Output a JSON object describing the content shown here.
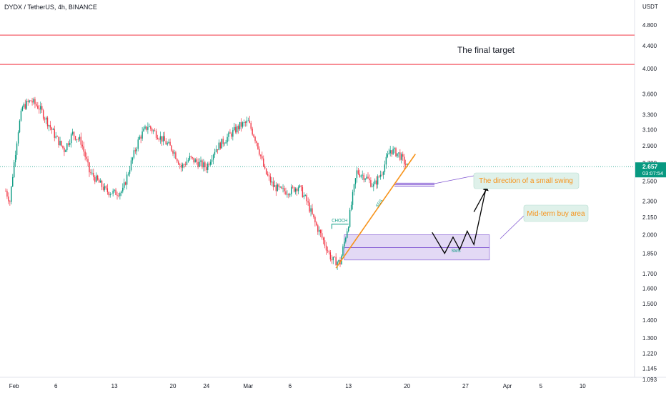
{
  "header": {
    "symbol": "DYDX / TetherUS, 4h, BINANCE",
    "currency": "USDT"
  },
  "price_scale": {
    "ticks": [
      "4.800",
      "4.400",
      "4.000",
      "3.600",
      "3.300",
      "3.100",
      "2.900",
      "2.700",
      "2.500",
      "2.300",
      "2.150",
      "2.000",
      "1.850",
      "1.700",
      "1.600",
      "1.500",
      "1.400",
      "1.300",
      "1.220",
      "1.145",
      "1.093"
    ],
    "current_price": "2.657",
    "countdown": "03:07:54",
    "current_color": "#089981"
  },
  "time_scale": {
    "labels": [
      "Feb",
      "6",
      "13",
      "20",
      "24",
      "Mar",
      "6",
      "13",
      "20",
      "27",
      "Apr",
      "5",
      "10"
    ]
  },
  "annotations": {
    "final_target": "The final target",
    "small_swing": "The direction of a small swing",
    "buy_area": "Mid-term buy area",
    "choch": "CHOCH",
    "sss": "SSS",
    "sms": "SMS"
  },
  "colors": {
    "up": "#089981",
    "down": "#f23645",
    "target_line": "#f23645",
    "trendline": "#f7931a",
    "zone_fill": "#d9ccf2",
    "zone_border": "#7b4fd0",
    "callout_bg": "#dff1ea",
    "callout_text": "#f7931a"
  },
  "chart_data": {
    "type": "candlestick",
    "title": "DYDX / TetherUS, 4h, BINANCE",
    "ylabel": "USDT",
    "y_scale": "log",
    "ylim": [
      1.093,
      4.9
    ],
    "x_range": [
      "Jan 31",
      "Apr 12"
    ],
    "target_lines": [
      4.6,
      4.07
    ],
    "buy_zone": {
      "from": "Mar 13",
      "to": "Mar 29",
      "low": 1.8,
      "high": 2.0,
      "mid": 1.895
    },
    "current_price": 2.657,
    "waypoints": [
      [
        "Jan 31",
        2.4
      ],
      [
        "Jan 31.5",
        2.3
      ],
      [
        "Feb 1",
        2.7
      ],
      [
        "Feb 1.5",
        3.1
      ],
      [
        "Feb 2",
        3.4
      ],
      [
        "Feb 3",
        3.5
      ],
      [
        "Feb 4",
        3.4
      ],
      [
        "Feb 5",
        3.2
      ],
      [
        "Feb 6",
        3.0
      ],
      [
        "Feb 7",
        2.85
      ],
      [
        "Feb 8",
        3.05
      ],
      [
        "Feb 9",
        2.95
      ],
      [
        "Feb 10",
        2.6
      ],
      [
        "Feb 11",
        2.5
      ],
      [
        "Feb 12",
        2.4
      ],
      [
        "Feb 13",
        2.38
      ],
      [
        "Feb 14",
        2.4
      ],
      [
        "Feb 15",
        2.7
      ],
      [
        "Feb 16",
        3.0
      ],
      [
        "Feb 17",
        3.15
      ],
      [
        "Feb 18",
        3.05
      ],
      [
        "Feb 19",
        2.95
      ],
      [
        "Feb 20",
        2.85
      ],
      [
        "Feb 21",
        2.65
      ],
      [
        "Feb 22",
        2.75
      ],
      [
        "Feb 23",
        2.7
      ],
      [
        "Feb 24",
        2.65
      ],
      [
        "Feb 25",
        2.85
      ],
      [
        "Feb 26",
        2.95
      ],
      [
        "Feb 27",
        3.05
      ],
      [
        "Feb 28",
        3.15
      ],
      [
        "Mar 1",
        3.2
      ],
      [
        "Mar 2",
        2.95
      ],
      [
        "Mar 3",
        2.6
      ],
      [
        "Mar 4",
        2.45
      ],
      [
        "Mar 5",
        2.4
      ],
      [
        "Mar 6",
        2.4
      ],
      [
        "Mar 7",
        2.45
      ],
      [
        "Mar 8",
        2.3
      ],
      [
        "Mar 9",
        2.1
      ],
      [
        "Mar 10",
        1.95
      ],
      [
        "Mar 11",
        1.8
      ],
      [
        "Mar 12",
        1.78
      ],
      [
        "Mar 13",
        2.1
      ],
      [
        "Mar 14",
        2.6
      ],
      [
        "Mar 15",
        2.55
      ],
      [
        "Mar 16",
        2.45
      ],
      [
        "Mar 17",
        2.6
      ],
      [
        "Mar 18",
        2.85
      ],
      [
        "Mar 19",
        2.8
      ],
      [
        "Mar 20",
        2.66
      ]
    ],
    "projection": [
      [
        "Mar 23",
        2.02
      ],
      [
        "Mar 24.5",
        1.85
      ],
      [
        "Mar 25.5",
        1.98
      ],
      [
        "Mar 26.3",
        1.88
      ],
      [
        "Mar 27.2",
        2.03
      ],
      [
        "Mar 28",
        1.92
      ],
      [
        "Mar 29.5",
        2.45
      ]
    ]
  }
}
